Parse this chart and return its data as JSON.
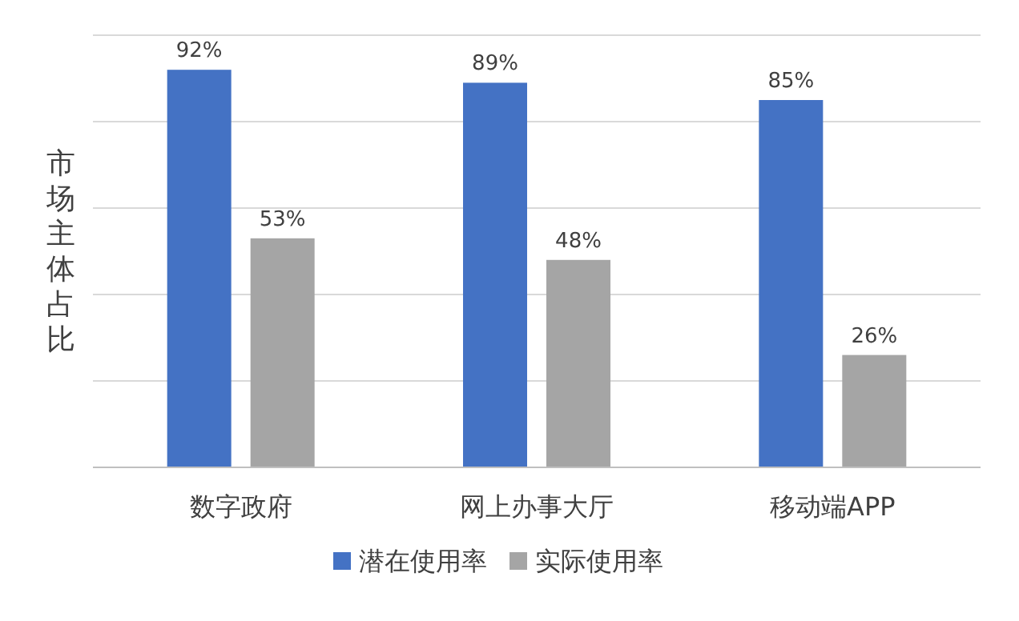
{
  "chart_data": {
    "type": "bar",
    "ylabel": "市场主体占比",
    "categories": [
      "数字政府",
      "网上办事大厅",
      "移动端APP"
    ],
    "series": [
      {
        "name": "潜在使用率",
        "color": "#4472c4",
        "values": [
          92,
          89,
          85
        ],
        "value_labels": [
          "92%",
          "89%",
          "85%"
        ]
      },
      {
        "name": "实际使用率",
        "color": "#a5a5a5",
        "values": [
          53,
          48,
          26
        ],
        "value_labels": [
          "53%",
          "48%",
          "26%"
        ]
      }
    ],
    "ylim": [
      0,
      100
    ],
    "yticks": [
      {
        "value": 0,
        "label": null
      },
      {
        "value": 20,
        "label": null
      },
      {
        "value": 40,
        "label": null
      },
      {
        "value": 60,
        "label": null
      },
      {
        "value": 80,
        "label": null
      },
      {
        "value": 100,
        "label": null
      }
    ],
    "grid": "y",
    "legend": "bottom",
    "tick_labels": "x"
  }
}
